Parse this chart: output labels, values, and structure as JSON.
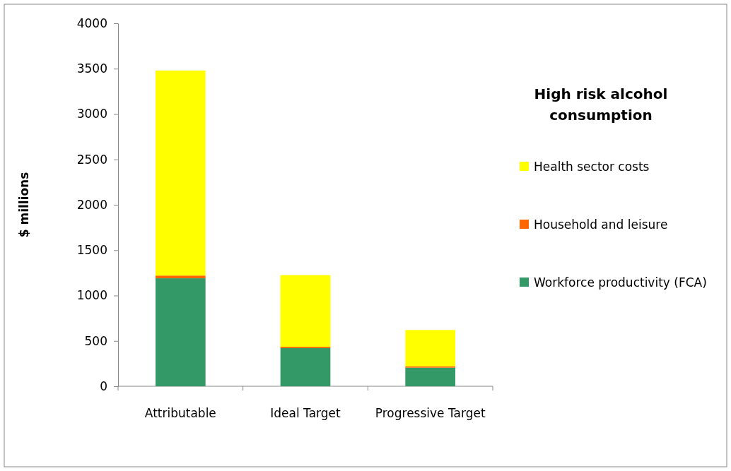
{
  "chart_data": {
    "type": "bar",
    "stacked": true,
    "categories": [
      "Attributable",
      "Ideal Target",
      "Progressive Target"
    ],
    "ylabel": "$ millions",
    "legend_title": "High risk alcohol consumption",
    "legend": "right",
    "ylim": [
      0,
      4000
    ],
    "yticks": [
      0,
      500,
      1000,
      1500,
      2000,
      2500,
      3000,
      3500,
      4000
    ],
    "series": [
      {
        "name": "Workforce productivity (FCA)",
        "color": "#339966",
        "values": [
          1190,
          420,
          205
        ]
      },
      {
        "name": "Household and leisure",
        "color": "#ff6600",
        "values": [
          30,
          15,
          15
        ]
      },
      {
        "name": "Health sector costs",
        "color": "#ffff00",
        "values": [
          2260,
          790,
          400
        ]
      }
    ]
  }
}
